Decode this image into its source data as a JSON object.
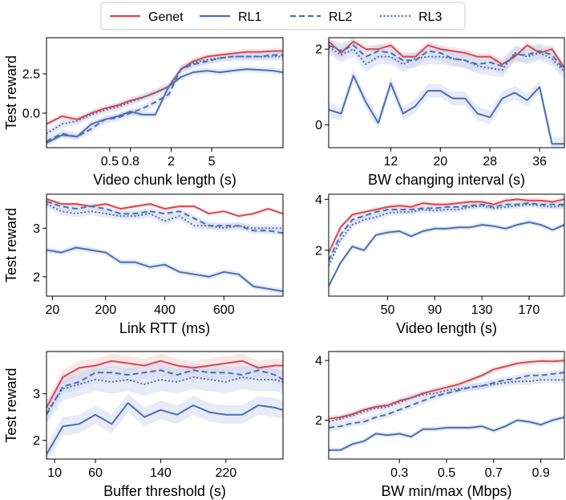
{
  "colors": {
    "genet": "#d9474f",
    "rl": "#4a6fb5",
    "band_genet": "#f2c9cc",
    "band_rl": "#c9d3ea"
  },
  "chart_data": {
    "type": "line",
    "legend": {
      "placement": "top-center",
      "entries": [
        {
          "name": "Genet",
          "style": "solid",
          "color": "#d9474f"
        },
        {
          "name": "RL1",
          "style": "solid",
          "color": "#4a6fb5"
        },
        {
          "name": "RL2",
          "style": "dashed",
          "color": "#4a6fb5"
        },
        {
          "name": "RL3",
          "style": "dotted",
          "color": "#4a6fb5"
        }
      ]
    },
    "panels": [
      {
        "id": "p1",
        "xlabel": "Video chunk length (s)",
        "ylabel": "Test reward",
        "xscale": "log",
        "xlim": [
          0.12,
          25
        ],
        "ylim": [
          -2.2,
          4.8
        ],
        "xticks": [
          {
            "v": 0.5,
            "label": "0.5"
          },
          {
            "v": 0.8,
            "label": "0.8"
          },
          {
            "v": 2,
            "label": "2"
          },
          {
            "v": 5,
            "label": "5"
          }
        ],
        "yticks": [
          {
            "v": 0,
            "label": "0.0"
          },
          {
            "v": 2.5,
            "label": "2.5"
          }
        ],
        "x": [
          0.12,
          0.17,
          0.24,
          0.33,
          0.45,
          0.6,
          0.8,
          1.05,
          1.4,
          1.9,
          2.5,
          3.3,
          4.5,
          6,
          8,
          11,
          15,
          20,
          25
        ],
        "series": [
          {
            "name": "Genet",
            "values": [
              -0.7,
              -0.2,
              -0.4,
              0.0,
              0.3,
              0.5,
              0.8,
              1.0,
              1.3,
              1.7,
              2.8,
              3.3,
              3.6,
              3.7,
              3.8,
              3.9,
              3.9,
              3.95,
              3.95
            ],
            "band": 0.2
          },
          {
            "name": "RL1",
            "values": [
              -1.9,
              -1.4,
              -1.5,
              -0.7,
              -0.4,
              -0.2,
              0.1,
              -0.1,
              -0.1,
              1.7,
              2.3,
              2.6,
              2.7,
              2.6,
              2.7,
              2.8,
              2.75,
              2.7,
              2.6
            ],
            "band": 0.2
          },
          {
            "name": "RL2",
            "values": [
              -1.8,
              -1.3,
              -1.5,
              -1.0,
              -0.4,
              -0.3,
              0.0,
              0.3,
              0.7,
              1.2,
              2.8,
              3.1,
              3.3,
              3.5,
              3.6,
              3.6,
              3.6,
              3.7,
              3.7
            ],
            "band": 0.25
          },
          {
            "name": "RL3",
            "values": [
              -1.3,
              -0.7,
              -0.5,
              -0.1,
              0.2,
              0.4,
              0.7,
              1.0,
              1.3,
              1.7,
              2.8,
              3.2,
              3.4,
              3.5,
              3.6,
              3.6,
              3.6,
              3.6,
              3.6
            ],
            "band": 0.25
          }
        ]
      },
      {
        "id": "p2",
        "xlabel": "BW changing interval (s)",
        "ylabel": "",
        "xscale": "linear",
        "xlim": [
          2,
          40
        ],
        "ylim": [
          -0.6,
          2.3
        ],
        "xticks": [
          {
            "v": 12,
            "label": "12"
          },
          {
            "v": 20,
            "label": "20"
          },
          {
            "v": 28,
            "label": "28"
          },
          {
            "v": 36,
            "label": "36"
          }
        ],
        "yticks": [
          {
            "v": 0,
            "label": "0"
          },
          {
            "v": 2,
            "label": "2"
          }
        ],
        "x": [
          2,
          4,
          6,
          8,
          10,
          12,
          14,
          16,
          18,
          20,
          22,
          24,
          26,
          28,
          30,
          32,
          34,
          36,
          38,
          40
        ],
        "series": [
          {
            "name": "Genet",
            "values": [
              2.2,
              1.9,
              2.2,
              2.0,
              2.0,
              2.1,
              1.8,
              1.8,
              2.1,
              2.0,
              1.95,
              1.9,
              1.8,
              1.8,
              1.6,
              1.8,
              2.1,
              1.9,
              2.0,
              1.5
            ],
            "band": 0.1
          },
          {
            "name": "RL1",
            "values": [
              0.4,
              0.3,
              1.3,
              0.6,
              0.05,
              1.1,
              0.3,
              0.5,
              0.9,
              0.9,
              0.7,
              0.7,
              0.3,
              0.2,
              0.7,
              0.85,
              0.65,
              1.0,
              -0.5,
              -0.5
            ],
            "band": 0.18
          },
          {
            "name": "RL2",
            "values": [
              2.1,
              1.95,
              2.1,
              1.8,
              1.95,
              1.9,
              1.7,
              1.7,
              1.95,
              1.9,
              1.75,
              1.7,
              1.6,
              1.65,
              1.55,
              1.85,
              1.85,
              1.95,
              1.85,
              1.45
            ],
            "band": 0.2
          },
          {
            "name": "RL3",
            "values": [
              2.05,
              1.85,
              2.0,
              1.6,
              1.8,
              1.8,
              1.6,
              1.75,
              1.8,
              1.8,
              1.75,
              1.7,
              1.55,
              1.5,
              1.45,
              1.9,
              1.8,
              1.9,
              1.75,
              1.4
            ],
            "band": 0.2
          }
        ]
      },
      {
        "id": "p3",
        "xlabel": "Link RTT (ms)",
        "ylabel": "Test reward",
        "xscale": "linear",
        "xlim": [
          0,
          800
        ],
        "ylim": [
          1.6,
          3.7
        ],
        "xticks": [
          {
            "v": 20,
            "label": "20"
          },
          {
            "v": 200,
            "label": "200"
          },
          {
            "v": 400,
            "label": "400"
          },
          {
            "v": 600,
            "label": "600"
          }
        ],
        "yticks": [
          {
            "v": 2,
            "label": "2"
          },
          {
            "v": 3,
            "label": "3"
          }
        ],
        "x": [
          0,
          50,
          100,
          150,
          200,
          250,
          300,
          350,
          400,
          450,
          500,
          550,
          600,
          650,
          700,
          750,
          800
        ],
        "series": [
          {
            "name": "Genet",
            "values": [
              3.6,
              3.5,
              3.5,
              3.45,
              3.5,
              3.4,
              3.45,
              3.5,
              3.4,
              3.45,
              3.45,
              3.3,
              3.35,
              3.25,
              3.3,
              3.4,
              3.3
            ],
            "band": 0.04
          },
          {
            "name": "RL1",
            "values": [
              2.55,
              2.5,
              2.6,
              2.55,
              2.5,
              2.3,
              2.3,
              2.2,
              2.25,
              2.1,
              2.05,
              2.0,
              2.1,
              2.05,
              1.8,
              1.75,
              1.7
            ],
            "band": 0.06
          },
          {
            "name": "RL2",
            "values": [
              3.55,
              3.45,
              3.4,
              3.45,
              3.4,
              3.3,
              3.3,
              3.35,
              3.3,
              3.35,
              3.2,
              3.05,
              3.05,
              3.05,
              2.95,
              2.95,
              2.9
            ],
            "band": 0.07
          },
          {
            "name": "RL3",
            "values": [
              3.5,
              3.35,
              3.3,
              3.35,
              3.3,
              3.25,
              3.25,
              3.3,
              3.15,
              3.25,
              3.05,
              3.05,
              3.0,
              3.05,
              3.0,
              3.0,
              3.0
            ],
            "band": 0.08
          }
        ]
      },
      {
        "id": "p4",
        "xlabel": "Video length (s)",
        "ylabel": "",
        "xscale": "linear",
        "xlim": [
          0,
          200
        ],
        "ylim": [
          0.2,
          4.2
        ],
        "xticks": [
          {
            "v": 50,
            "label": "50"
          },
          {
            "v": 90,
            "label": "90"
          },
          {
            "v": 130,
            "label": "130"
          },
          {
            "v": 170,
            "label": "170"
          }
        ],
        "yticks": [
          {
            "v": 2,
            "label": "2"
          },
          {
            "v": 4,
            "label": "4"
          }
        ],
        "x": [
          0,
          10,
          20,
          30,
          40,
          50,
          60,
          70,
          80,
          90,
          100,
          110,
          120,
          130,
          140,
          150,
          160,
          170,
          180,
          190,
          200
        ],
        "series": [
          {
            "name": "Genet",
            "values": [
              1.9,
              2.9,
              3.4,
              3.5,
              3.6,
              3.7,
              3.75,
              3.7,
              3.85,
              3.8,
              3.8,
              3.85,
              3.9,
              3.9,
              3.8,
              3.95,
              4.0,
              3.95,
              3.95,
              3.9,
              4.0
            ],
            "band": 0.1
          },
          {
            "name": "RL1",
            "values": [
              0.6,
              1.5,
              2.15,
              2.0,
              2.6,
              2.7,
              2.75,
              2.55,
              2.75,
              2.85,
              2.85,
              2.9,
              2.9,
              3.0,
              2.95,
              2.85,
              3.0,
              3.1,
              3.0,
              2.8,
              3.0
            ],
            "band": 0.1
          },
          {
            "name": "RL2",
            "values": [
              1.6,
              2.6,
              3.2,
              3.35,
              3.5,
              3.6,
              3.6,
              3.6,
              3.65,
              3.65,
              3.7,
              3.7,
              3.75,
              3.8,
              3.7,
              3.8,
              3.8,
              3.85,
              3.8,
              3.8,
              3.8
            ],
            "band": 0.12
          },
          {
            "name": "RL3",
            "values": [
              1.4,
              2.4,
              3.0,
              3.2,
              3.3,
              3.45,
              3.5,
              3.5,
              3.6,
              3.55,
              3.6,
              3.6,
              3.7,
              3.75,
              3.65,
              3.7,
              3.75,
              3.8,
              3.75,
              3.7,
              3.75
            ],
            "band": 0.12
          }
        ]
      },
      {
        "id": "p5",
        "xlabel": "Buffer threshold (s)",
        "ylabel": "Test reward",
        "xscale": "linear",
        "xlim": [
          0,
          290
        ],
        "ylim": [
          1.6,
          3.9
        ],
        "xticks": [
          {
            "v": 10,
            "label": "10"
          },
          {
            "v": 60,
            "label": "60"
          },
          {
            "v": 140,
            "label": "140"
          },
          {
            "v": 220,
            "label": "220"
          }
        ],
        "yticks": [
          {
            "v": 2,
            "label": "2"
          },
          {
            "v": 3,
            "label": "3"
          }
        ],
        "x": [
          0,
          20,
          40,
          60,
          80,
          100,
          120,
          140,
          160,
          180,
          200,
          220,
          240,
          260,
          280,
          290
        ],
        "series": [
          {
            "name": "Genet",
            "values": [
              2.7,
              3.35,
              3.55,
              3.6,
              3.7,
              3.65,
              3.6,
              3.7,
              3.6,
              3.55,
              3.6,
              3.65,
              3.7,
              3.55,
              3.6,
              3.6
            ],
            "band": 0.15
          },
          {
            "name": "RL1",
            "values": [
              1.7,
              2.3,
              2.35,
              2.55,
              2.35,
              2.8,
              2.5,
              2.65,
              2.55,
              2.75,
              2.6,
              2.55,
              2.55,
              2.75,
              2.7,
              2.65
            ],
            "band": 0.2
          },
          {
            "name": "RL2",
            "values": [
              2.55,
              3.15,
              3.25,
              3.45,
              3.45,
              3.4,
              3.45,
              3.5,
              3.4,
              3.5,
              3.45,
              3.45,
              3.4,
              3.5,
              3.4,
              3.3
            ],
            "band": 0.15
          },
          {
            "name": "RL3",
            "values": [
              2.6,
              3.1,
              3.2,
              3.3,
              3.25,
              3.3,
              3.2,
              3.3,
              3.25,
              3.35,
              3.3,
              3.25,
              3.35,
              3.3,
              3.3,
              3.25
            ],
            "band": 0.25
          }
        ]
      },
      {
        "id": "p6",
        "xlabel": "BW min/max (Mbps)",
        "ylabel": "",
        "xscale": "linear",
        "xlim": [
          0,
          1.0
        ],
        "ylim": [
          0.7,
          4.3
        ],
        "xticks": [
          {
            "v": 0.3,
            "label": "0.3"
          },
          {
            "v": 0.5,
            "label": "0.5"
          },
          {
            "v": 0.7,
            "label": "0.7"
          },
          {
            "v": 0.9,
            "label": "0.9"
          }
        ],
        "yticks": [
          {
            "v": 2,
            "label": "2"
          },
          {
            "v": 4,
            "label": "4"
          }
        ],
        "x": [
          0,
          0.05,
          0.1,
          0.15,
          0.2,
          0.25,
          0.3,
          0.35,
          0.4,
          0.45,
          0.5,
          0.55,
          0.6,
          0.65,
          0.7,
          0.75,
          0.8,
          0.85,
          0.9,
          0.95,
          1.0
        ],
        "series": [
          {
            "name": "Genet",
            "values": [
              2.05,
              2.1,
              2.2,
              2.35,
              2.45,
              2.5,
              2.65,
              2.75,
              2.9,
              3.0,
              3.1,
              3.2,
              3.35,
              3.5,
              3.7,
              3.8,
              3.9,
              3.95,
              3.98,
              3.97,
              4.0
            ],
            "band": 0.1
          },
          {
            "name": "RL1",
            "values": [
              1.0,
              1.0,
              1.2,
              1.3,
              1.55,
              1.5,
              1.55,
              1.45,
              1.7,
              1.7,
              1.75,
              1.75,
              1.75,
              1.8,
              1.65,
              1.8,
              2.0,
              1.95,
              1.85,
              2.0,
              2.1
            ],
            "band": 0.08
          },
          {
            "name": "RL2",
            "values": [
              1.75,
              1.8,
              1.9,
              1.95,
              2.1,
              2.2,
              2.35,
              2.5,
              2.65,
              2.8,
              2.9,
              3.0,
              3.1,
              3.15,
              3.25,
              3.35,
              3.4,
              3.5,
              3.5,
              3.55,
              3.6
            ],
            "band": 0.12
          },
          {
            "name": "RL3",
            "values": [
              1.95,
              2.05,
              2.15,
              2.3,
              2.4,
              2.45,
              2.6,
              2.75,
              2.85,
              2.9,
              3.0,
              3.05,
              3.1,
              3.15,
              3.2,
              3.25,
              3.3,
              3.3,
              3.35,
              3.35,
              3.35
            ],
            "band": 0.12
          }
        ]
      }
    ]
  }
}
